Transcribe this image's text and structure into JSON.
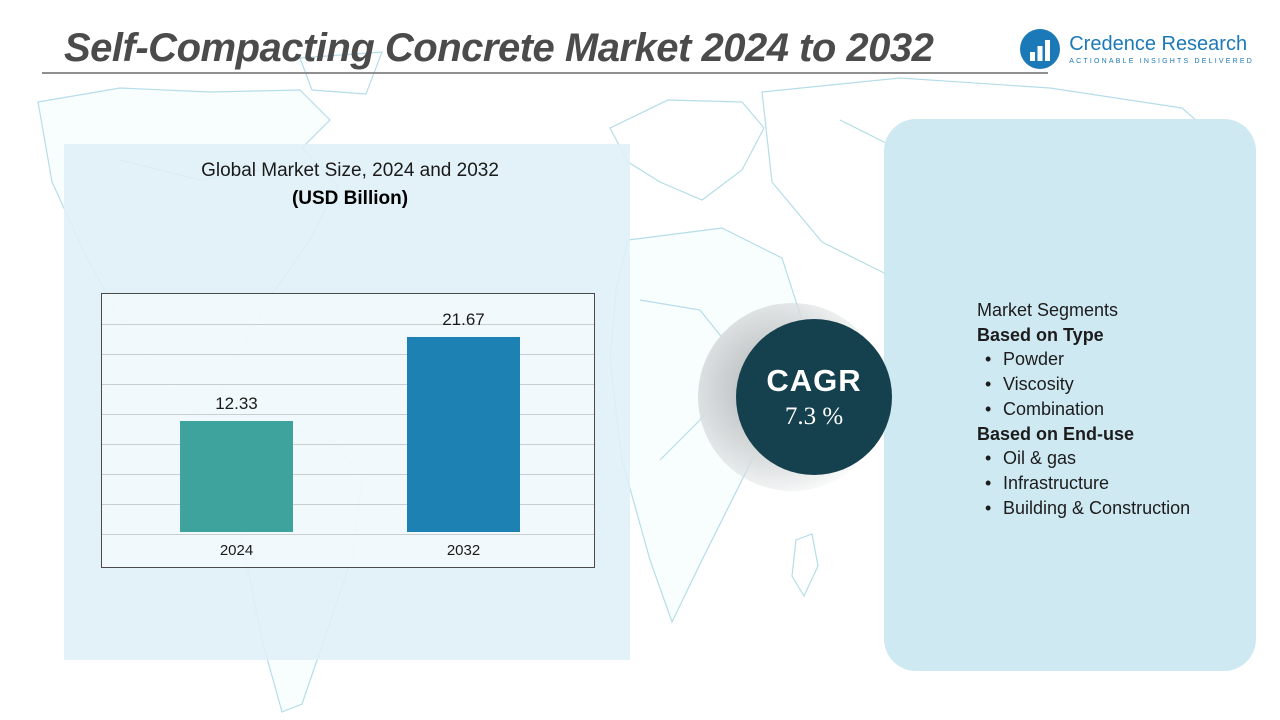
{
  "header": {
    "title": "Self-Compacting Concrete Market 2024 to 2032",
    "logo": {
      "name": "Credence Research",
      "tagline": "Actionable Insights Delivered"
    }
  },
  "chart": {
    "title_line1": "Global Market Size, 2024 and 2032",
    "title_line2": "(USD Billion)"
  },
  "chart_data": {
    "type": "bar",
    "categories": [
      "2024",
      "2032"
    ],
    "values": [
      12.33,
      21.67
    ],
    "value_labels": [
      "12.33",
      "21.67"
    ],
    "title": "Global Market Size, 2024 and 2032 (USD Billion)",
    "xlabel": "",
    "ylabel": "",
    "ylim": [
      0,
      24
    ],
    "grid": true,
    "legend": "none",
    "bar_colors": [
      "#3fa39d",
      "#1e81b4"
    ]
  },
  "cagr": {
    "label": "CAGR",
    "value": "7.3 %"
  },
  "right_panel": {
    "heading": "Market Segments",
    "type_heading": "Based on Type",
    "type_items": [
      "Powder",
      "Viscosity",
      "Combination"
    ],
    "enduse_heading": "Based on End-use",
    "enduse_items": [
      "Oil & gas",
      "Infrastructure",
      "Building & Construction"
    ]
  },
  "colors": {
    "bar_2024": "#3fa39d",
    "bar_2032": "#1e81b4",
    "cagr_circle": "#15404e",
    "right_panel_bg": "#cfe9f3",
    "left_panel_bg": "#dff0f7",
    "logo_blue": "#1c79b8",
    "map_line": "#b5dde9"
  }
}
